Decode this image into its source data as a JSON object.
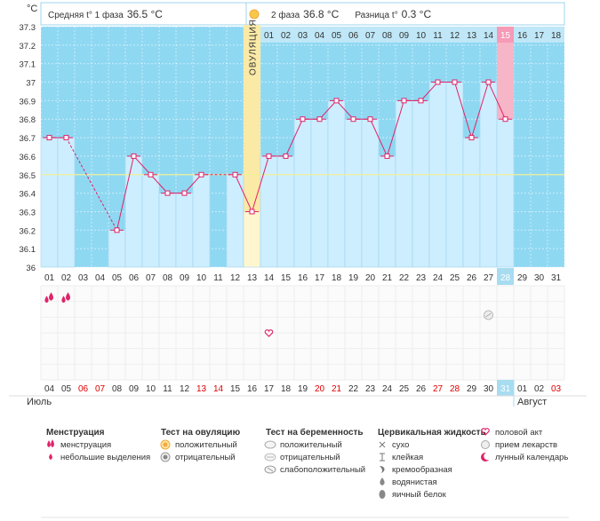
{
  "header": {
    "phase1_label": "Средняя t° 1 фаза",
    "phase1_value": "36.5 °C",
    "phase2_label": "2 фаза",
    "phase2_value": "36.8 °C",
    "diff_label": "Разница t°",
    "diff_value": "0.3 °C"
  },
  "colors": {
    "bar": "#cdeefe",
    "bar_stroke": "#9fd4ee",
    "plot_bg": "#8fd8f2",
    "line": "#e0236a",
    "ovulation": "#fbe9a6",
    "ovulation_head": "#f7dd7a",
    "predicted": "#f7b5c8",
    "weekend": "#e00000",
    "text": "#333333",
    "cover_line": "#f0f099"
  },
  "chart_data": {
    "type": "line",
    "title": "",
    "ylabel": "°C",
    "ylim": [
      36,
      37.3
    ],
    "yticks": [
      "37.3",
      "37.2",
      "37.1",
      "37",
      "36.9",
      "36.8",
      "36.7",
      "36.6",
      "36.5",
      "36.4",
      "36.3",
      "36.2",
      "36.1",
      "36"
    ],
    "cycle_days": [
      "01",
      "02",
      "03",
      "04",
      "05",
      "06",
      "07",
      "08",
      "09",
      "10",
      "11",
      "12",
      "13",
      "14",
      "15",
      "16",
      "17",
      "18",
      "19",
      "20",
      "21",
      "22",
      "23",
      "24",
      "25",
      "26",
      "27",
      "28",
      "29",
      "30",
      "31"
    ],
    "phase2_days": [
      "01",
      "02",
      "03",
      "04",
      "05",
      "06",
      "07",
      "08",
      "09",
      "10",
      "11",
      "12",
      "13",
      "14",
      "15",
      "16",
      "17",
      "18"
    ],
    "phase2_start_index": 13,
    "temperatures": [
      36.7,
      36.7,
      null,
      null,
      36.2,
      36.6,
      36.5,
      36.4,
      36.4,
      36.5,
      null,
      36.5,
      36.3,
      36.6,
      36.6,
      36.8,
      36.8,
      36.9,
      36.8,
      36.8,
      36.6,
      36.9,
      36.9,
      37.0,
      37.0,
      36.7,
      37.0,
      36.8,
      null,
      null,
      null
    ],
    "dashed_segments": [
      [
        1,
        4
      ],
      [
        9,
        11
      ]
    ],
    "ovulation_index": 12,
    "ovulation_label": "ОВУЛЯЦИЯ",
    "predicted_index": 27,
    "current_index": 27,
    "cover_line": 36.5,
    "dates": [
      "04",
      "05",
      "06",
      "07",
      "08",
      "09",
      "10",
      "11",
      "12",
      "13",
      "14",
      "15",
      "16",
      "17",
      "18",
      "19",
      "20",
      "21",
      "22",
      "23",
      "24",
      "25",
      "26",
      "27",
      "28",
      "29",
      "30",
      "31",
      "01",
      "02",
      "03"
    ],
    "weekend_date_indexes": [
      2,
      3,
      9,
      10,
      16,
      17,
      23,
      24,
      30
    ],
    "current_date_index": 27,
    "months": [
      "Июль",
      "Август"
    ],
    "events": [
      {
        "index": 0,
        "type": "menstruation"
      },
      {
        "index": 1,
        "type": "menstruation"
      },
      {
        "index": 13,
        "type": "intercourse"
      },
      {
        "index": 26,
        "type": "medication"
      }
    ]
  },
  "legend": {
    "groups": [
      {
        "title": "Менструация",
        "items": [
          {
            "icon": "menstruation-icon",
            "label": "менструация"
          },
          {
            "icon": "spotting-icon",
            "label": "небольшие выделения"
          }
        ]
      },
      {
        "title": "Тест на овуляцию",
        "items": [
          {
            "icon": "positive-ovulation-icon",
            "label": "положительный"
          },
          {
            "icon": "negative-ovulation-icon",
            "label": "отрицательный"
          }
        ]
      },
      {
        "title": "Тест на беременность",
        "items": [
          {
            "icon": "positive-pregnancy-icon",
            "label": "положительный"
          },
          {
            "icon": "negative-pregnancy-icon",
            "label": "отрицательный"
          },
          {
            "icon": "weak-pregnancy-icon",
            "label": "слабоположительный"
          }
        ]
      },
      {
        "title": "Цервикальная жидкость",
        "items": [
          {
            "icon": "dry-icon",
            "label": "сухо"
          },
          {
            "icon": "sticky-icon",
            "label": "клейкая"
          },
          {
            "icon": "creamy-icon",
            "label": "кремообразная"
          },
          {
            "icon": "watery-icon",
            "label": "водянистая"
          },
          {
            "icon": "egg-white-icon",
            "label": "яичный белок"
          }
        ]
      },
      {
        "title": "",
        "items": [
          {
            "icon": "intercourse-icon",
            "label": "половой акт"
          },
          {
            "icon": "medication-icon",
            "label": "прием лекарств"
          },
          {
            "icon": "lunar-calendar-icon",
            "label": "лунный календарь"
          }
        ]
      }
    ]
  }
}
